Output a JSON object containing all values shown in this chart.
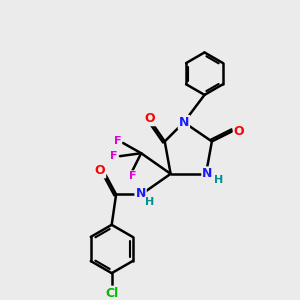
{
  "bg_color": "#ebebeb",
  "bond_color": "#000000",
  "bond_width": 1.8,
  "atom_colors": {
    "N": "#1a1aff",
    "O": "#ff0000",
    "F": "#e000e0",
    "Cl": "#00bb00",
    "C": "#000000",
    "H": "#009090"
  },
  "font_size": 8,
  "fig_size": [
    3.0,
    3.0
  ],
  "dpi": 100
}
